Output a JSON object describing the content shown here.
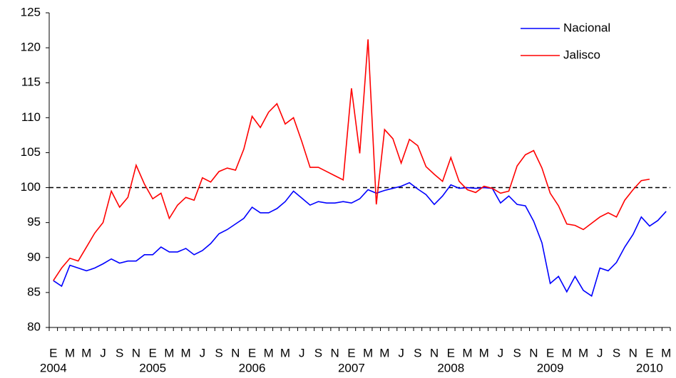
{
  "chart_data": {
    "type": "line",
    "categories": [
      "E",
      null,
      "M",
      null,
      "M",
      null,
      "J",
      null,
      "S",
      null,
      "N",
      null,
      "E",
      null,
      "M",
      null,
      "M",
      null,
      "J",
      null,
      "S",
      null,
      "N",
      null,
      "E",
      null,
      "M",
      null,
      "M",
      null,
      "J",
      null,
      "S",
      null,
      "N",
      null,
      "E",
      null,
      "M",
      null,
      "M",
      null,
      "J",
      null,
      "S",
      null,
      "N",
      null,
      "E",
      null,
      "M",
      null,
      "M",
      null,
      "J",
      null,
      "S",
      null,
      "N",
      null,
      "E",
      null,
      "M",
      null,
      "M",
      null,
      "J",
      null,
      "S",
      null,
      "N",
      null,
      "E",
      null,
      "M"
    ],
    "years": [
      "2004",
      "2005",
      "2006",
      "2007",
      "2008",
      "2009",
      "2010"
    ],
    "series": [
      {
        "name": "Nacional",
        "color": "#0000ff",
        "values": [
          86.7,
          85.9,
          88.9,
          88.5,
          88.1,
          88.5,
          89.1,
          89.8,
          89.2,
          89.5,
          89.5,
          90.4,
          90.4,
          91.5,
          90.8,
          90.8,
          91.3,
          90.4,
          91.0,
          92.0,
          93.4,
          94.0,
          94.8,
          95.6,
          97.2,
          96.4,
          96.4,
          97.0,
          98.0,
          99.5,
          98.5,
          97.5,
          98.0,
          97.8,
          97.8,
          98.0,
          97.8,
          98.4,
          99.7,
          99.2,
          99.6,
          99.9,
          100.2,
          100.7,
          99.8,
          99.0,
          97.6,
          98.8,
          100.4,
          99.9,
          100.0,
          99.9,
          100.0,
          99.9,
          97.8,
          98.8,
          97.6,
          97.4,
          95.2,
          92.1,
          86.3,
          87.3,
          85.1,
          87.3,
          85.3,
          84.5,
          88.5,
          88.1,
          89.3,
          91.5,
          93.3,
          95.8,
          94.5,
          95.3,
          96.6
        ]
      },
      {
        "name": "Jalisco",
        "color": "#ff0000",
        "values": [
          86.7,
          88.5,
          89.9,
          89.5,
          91.5,
          93.5,
          95.0,
          99.5,
          97.2,
          98.6,
          103.2,
          100.5,
          98.4,
          99.2,
          95.6,
          97.5,
          98.6,
          98.2,
          101.4,
          100.8,
          102.3,
          102.8,
          102.5,
          105.5,
          110.2,
          108.6,
          110.8,
          112.0,
          109.1,
          110.0,
          106.6,
          102.9,
          102.9,
          102.3,
          101.7,
          101.1,
          114.2,
          104.9,
          121.2,
          97.6,
          108.3,
          107.0,
          103.5,
          106.9,
          106.0,
          103.0,
          101.9,
          100.9,
          104.3,
          100.9,
          99.7,
          99.3,
          100.2,
          99.9,
          99.2,
          99.5,
          103.1,
          104.7,
          105.3,
          102.8,
          99.2,
          97.4,
          94.8,
          94.6,
          94.0,
          94.9,
          95.8,
          96.4,
          95.8,
          98.2,
          99.7,
          101.0,
          101.2,
          null,
          null
        ]
      }
    ],
    "ylim": [
      80,
      125
    ],
    "yticks": [
      80,
      85,
      90,
      95,
      100,
      105,
      110,
      115,
      120,
      125
    ],
    "reference_line": 100,
    "grid": false,
    "legend": "top-right"
  }
}
